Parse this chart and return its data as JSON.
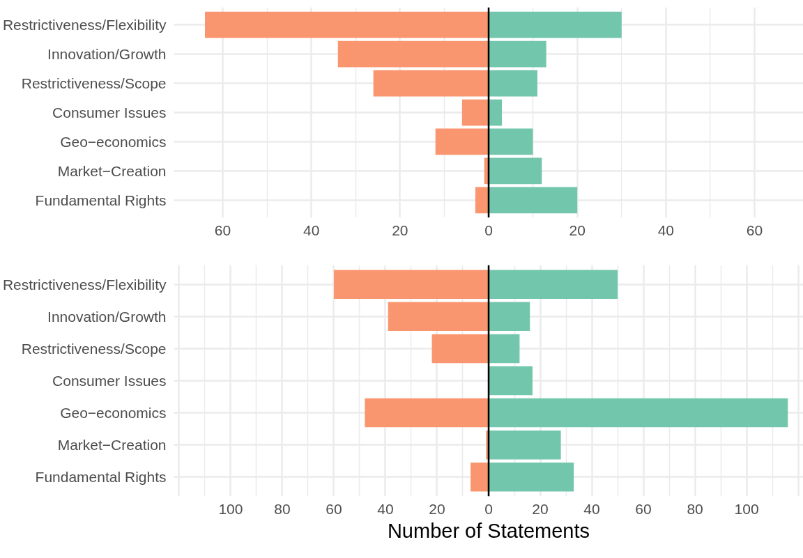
{
  "chart_data": [
    {
      "type": "bar",
      "orientation": "horizontal",
      "categories": [
        "Restrictiveness/Flexibility",
        "Innovation/Growth",
        "Restrictiveness/Scope",
        "Consumer Issues",
        "Geo−economics",
        "Market−Creation",
        "Fundamental Rights"
      ],
      "series": [
        {
          "color": "#f9966f",
          "values": [
            -64,
            -34,
            -26,
            -6,
            -12,
            -1,
            -3
          ]
        },
        {
          "color": "#72c6ab",
          "values": [
            30,
            13,
            11,
            3,
            10,
            12,
            20
          ]
        }
      ],
      "xlim": [
        -71,
        71
      ],
      "xticks": [
        {
          "value": -60,
          "label": "60"
        },
        {
          "value": -40,
          "label": "40"
        },
        {
          "value": -20,
          "label": "20"
        },
        0,
        20,
        40,
        60
      ],
      "ref_lines": [
        {
          "axis": "x",
          "value": 0,
          "color": "#000000"
        }
      ],
      "grid": true,
      "stacked": true
    },
    {
      "type": "bar",
      "orientation": "horizontal",
      "categories": [
        "Restrictiveness/Flexibility",
        "Innovation/Growth",
        "Restrictiveness/Scope",
        "Consumer Issues",
        "Geo−economics",
        "Market−Creation",
        "Fundamental Rights"
      ],
      "series": [
        {
          "color": "#f9966f",
          "values": [
            -60,
            -39,
            -22,
            0,
            -48,
            -1,
            -7
          ]
        },
        {
          "color": "#72c6ab",
          "values": [
            50,
            16,
            12,
            17,
            116,
            28,
            33
          ]
        }
      ],
      "xlim": [
        -122,
        122
      ],
      "xticks": [
        {
          "value": -120,
          "label": null
        },
        {
          "value": -100,
          "label": "100"
        },
        {
          "value": -80,
          "label": "80"
        },
        {
          "value": -60,
          "label": "60"
        },
        {
          "value": -40,
          "label": "40"
        },
        {
          "value": -20,
          "label": "20"
        },
        0,
        20,
        40,
        60,
        80,
        100,
        {
          "value": 120,
          "label": null
        }
      ],
      "xlabel": "Number of Statements",
      "ref_lines": [
        {
          "axis": "x",
          "value": 0,
          "color": "#000000"
        }
      ],
      "grid": true,
      "stacked": true
    }
  ]
}
